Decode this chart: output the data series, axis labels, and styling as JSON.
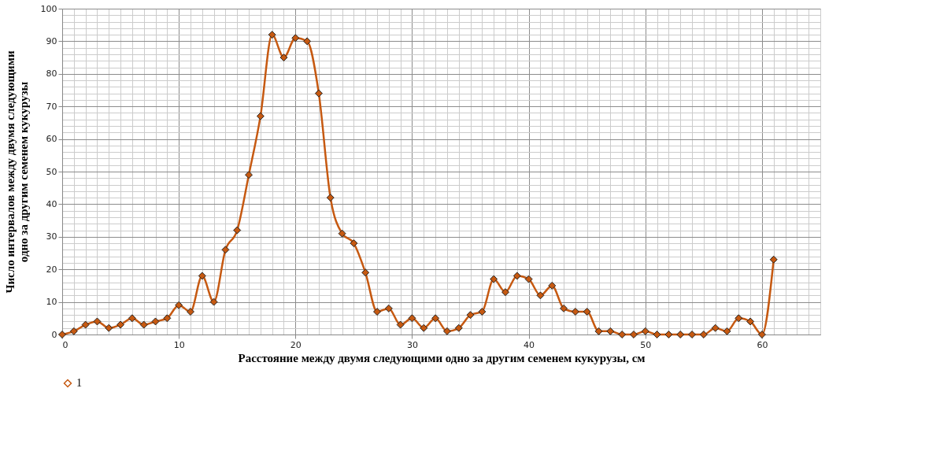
{
  "chart_data": {
    "type": "line",
    "xlabel": "Расстояние между двумя следующими одно за другим семенем кукурузы, см",
    "ylabel": "Число интервалов между двумя следующими одно за другим семенем кукурузы",
    "x": [
      0,
      1,
      2,
      3,
      4,
      5,
      6,
      7,
      8,
      9,
      10,
      11,
      12,
      13,
      14,
      15,
      16,
      17,
      18,
      19,
      20,
      21,
      22,
      23,
      24,
      25,
      26,
      27,
      28,
      29,
      30,
      31,
      32,
      33,
      34,
      35,
      36,
      37,
      38,
      39,
      40,
      41,
      42,
      43,
      44,
      45,
      46,
      47,
      48,
      49,
      50,
      51,
      52,
      53,
      54,
      55,
      56,
      57,
      58,
      59,
      60,
      61
    ],
    "series": [
      {
        "name": "1",
        "color": "#c65911",
        "values": [
          0,
          1,
          3,
          4,
          2,
          3,
          5,
          3,
          4,
          5,
          9,
          7,
          18,
          10,
          26,
          32,
          49,
          67,
          92,
          85,
          91,
          90,
          74,
          42,
          31,
          28,
          19,
          7,
          8,
          3,
          5,
          2,
          5,
          1,
          2,
          6,
          7,
          17,
          13,
          18,
          17,
          12,
          15,
          8,
          7,
          7,
          1,
          1,
          0,
          0,
          1,
          0,
          0,
          0,
          0,
          0,
          2,
          1,
          5,
          4,
          0,
          23
        ]
      }
    ],
    "xlim": [
      0,
      65
    ],
    "xticks": [
      0,
      10,
      20,
      30,
      40,
      50,
      60
    ],
    "ylim": [
      0,
      100
    ],
    "yticks": [
      0,
      10,
      20,
      30,
      40,
      50,
      60,
      70,
      80,
      90,
      100
    ],
    "grid": true,
    "legend": "bottom",
    "marker": "diamond",
    "line_style": "solid"
  }
}
